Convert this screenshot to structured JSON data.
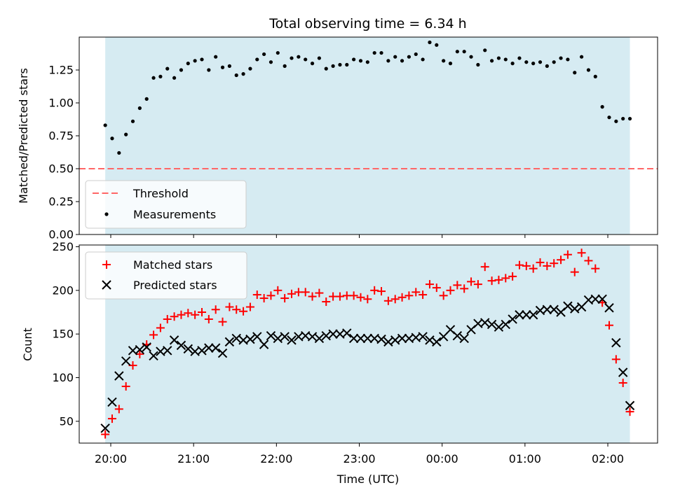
{
  "chart_data": [
    {
      "type": "scatter",
      "title": "Total observing time = 6.34 h",
      "xlabel": "",
      "ylabel": "Matched/Predicted stars",
      "ylim": [
        0,
        1.5
      ],
      "yticks": [
        "0.00",
        "0.25",
        "0.50",
        "0.75",
        "1.00",
        "1.25"
      ],
      "observing_window": [
        "19:56",
        "02:16"
      ],
      "legend": {
        "placement": "lower-left",
        "entries": [
          "Threshold",
          "Measurements"
        ]
      },
      "threshold": {
        "name": "Threshold",
        "value": 0.5,
        "color": "#ff6666",
        "style": "dashed"
      },
      "series": [
        {
          "name": "Measurements",
          "marker": "dot",
          "color": "#000000",
          "x": [
            "19:56",
            "20:01",
            "20:06",
            "20:11",
            "20:16",
            "20:21",
            "20:26",
            "20:31",
            "20:36",
            "20:41",
            "20:46",
            "20:51",
            "20:56",
            "21:01",
            "21:06",
            "21:11",
            "21:16",
            "21:21",
            "21:26",
            "21:31",
            "21:36",
            "21:41",
            "21:46",
            "21:51",
            "21:56",
            "22:01",
            "22:06",
            "22:11",
            "22:16",
            "22:21",
            "22:26",
            "22:31",
            "22:36",
            "22:41",
            "22:46",
            "22:51",
            "22:56",
            "23:01",
            "23:06",
            "23:11",
            "23:16",
            "23:21",
            "23:26",
            "23:31",
            "23:36",
            "23:41",
            "23:46",
            "23:51",
            "23:56",
            "00:01",
            "00:06",
            "00:11",
            "00:16",
            "00:21",
            "00:26",
            "00:31",
            "00:36",
            "00:41",
            "00:46",
            "00:51",
            "00:56",
            "01:01",
            "01:06",
            "01:11",
            "01:16",
            "01:21",
            "01:26",
            "01:31",
            "01:36",
            "01:41",
            "01:46",
            "01:51",
            "01:56",
            "02:01",
            "02:06",
            "02:11",
            "02:16"
          ],
          "y": [
            0.83,
            0.73,
            0.62,
            0.76,
            0.86,
            0.96,
            1.03,
            1.19,
            1.2,
            1.26,
            1.19,
            1.25,
            1.3,
            1.32,
            1.33,
            1.25,
            1.35,
            1.27,
            1.28,
            1.21,
            1.22,
            1.26,
            1.33,
            1.37,
            1.31,
            1.38,
            1.28,
            1.34,
            1.35,
            1.33,
            1.3,
            1.34,
            1.26,
            1.28,
            1.29,
            1.29,
            1.33,
            1.32,
            1.31,
            1.38,
            1.38,
            1.32,
            1.35,
            1.32,
            1.35,
            1.37,
            1.33,
            1.46,
            1.44,
            1.32,
            1.3,
            1.39,
            1.39,
            1.35,
            1.29,
            1.4,
            1.32,
            1.34,
            1.33,
            1.3,
            1.34,
            1.31,
            1.3,
            1.31,
            1.28,
            1.31,
            1.34,
            1.33,
            1.23,
            1.35,
            1.25,
            1.2,
            0.97,
            0.89,
            0.86,
            0.88,
            0.88
          ]
        }
      ]
    },
    {
      "type": "scatter",
      "title": "",
      "xlabel": "Time (UTC)",
      "ylabel": "Count",
      "ylim": [
        25,
        252
      ],
      "yticks": [
        "50",
        "100",
        "150",
        "200",
        "250"
      ],
      "xticks": [
        "20:00",
        "21:00",
        "22:00",
        "23:00",
        "00:00",
        "01:00",
        "02:00"
      ],
      "observing_window": [
        "19:56",
        "02:16"
      ],
      "legend": {
        "placement": "upper-left",
        "entries": [
          "Matched stars",
          "Predicted stars"
        ]
      },
      "series": [
        {
          "name": "Matched stars",
          "marker": "plus",
          "color": "#ff0000",
          "x": [
            "19:56",
            "20:01",
            "20:06",
            "20:11",
            "20:16",
            "20:21",
            "20:26",
            "20:31",
            "20:36",
            "20:41",
            "20:46",
            "20:51",
            "20:56",
            "21:01",
            "21:06",
            "21:11",
            "21:16",
            "21:21",
            "21:26",
            "21:31",
            "21:36",
            "21:41",
            "21:46",
            "21:51",
            "21:56",
            "22:01",
            "22:06",
            "22:11",
            "22:16",
            "22:21",
            "22:26",
            "22:31",
            "22:36",
            "22:41",
            "22:46",
            "22:51",
            "22:56",
            "23:01",
            "23:06",
            "23:11",
            "23:16",
            "23:21",
            "23:26",
            "23:31",
            "23:36",
            "23:41",
            "23:46",
            "23:51",
            "23:56",
            "00:01",
            "00:06",
            "00:11",
            "00:16",
            "00:21",
            "00:26",
            "00:31",
            "00:36",
            "00:41",
            "00:46",
            "00:51",
            "00:56",
            "01:01",
            "01:06",
            "01:11",
            "01:16",
            "01:21",
            "01:26",
            "01:31",
            "01:36",
            "01:41",
            "01:46",
            "01:51",
            "01:56",
            "02:01",
            "02:06",
            "02:11",
            "02:16"
          ],
          "y": [
            35,
            53,
            64,
            90,
            114,
            127,
            138,
            149,
            157,
            167,
            170,
            172,
            174,
            172,
            175,
            167,
            178,
            164,
            181,
            178,
            176,
            181,
            195,
            191,
            194,
            200,
            191,
            196,
            198,
            198,
            193,
            197,
            187,
            193,
            193,
            194,
            194,
            192,
            190,
            200,
            199,
            188,
            190,
            192,
            194,
            198,
            195,
            207,
            203,
            194,
            200,
            206,
            202,
            210,
            207,
            227,
            211,
            212,
            214,
            216,
            229,
            228,
            225,
            232,
            228,
            231,
            235,
            241,
            221,
            243,
            234,
            225,
            186,
            160,
            121,
            94,
            61
          ]
        },
        {
          "name": "Predicted stars",
          "marker": "x",
          "color": "#000000",
          "x": [
            "19:56",
            "20:01",
            "20:06",
            "20:11",
            "20:16",
            "20:21",
            "20:26",
            "20:31",
            "20:36",
            "20:41",
            "20:46",
            "20:51",
            "20:56",
            "21:01",
            "21:06",
            "21:11",
            "21:16",
            "21:21",
            "21:26",
            "21:31",
            "21:36",
            "21:41",
            "21:46",
            "21:51",
            "21:56",
            "22:01",
            "22:06",
            "22:11",
            "22:16",
            "22:21",
            "22:26",
            "22:31",
            "22:36",
            "22:41",
            "22:46",
            "22:51",
            "22:56",
            "23:01",
            "23:06",
            "23:11",
            "23:16",
            "23:21",
            "23:26",
            "23:31",
            "23:36",
            "23:41",
            "23:46",
            "23:51",
            "23:56",
            "00:01",
            "00:06",
            "00:11",
            "00:16",
            "00:21",
            "00:26",
            "00:31",
            "00:36",
            "00:41",
            "00:46",
            "00:51",
            "00:56",
            "01:01",
            "01:06",
            "01:11",
            "01:16",
            "01:21",
            "01:26",
            "01:31",
            "01:36",
            "01:41",
            "01:46",
            "01:51",
            "01:56",
            "02:01",
            "02:06",
            "02:11",
            "02:16"
          ],
          "y": [
            42,
            72,
            102,
            119,
            131,
            132,
            135,
            125,
            130,
            131,
            143,
            137,
            133,
            130,
            131,
            134,
            134,
            128,
            141,
            145,
            143,
            144,
            147,
            138,
            148,
            145,
            147,
            143,
            147,
            148,
            147,
            145,
            148,
            150,
            150,
            151,
            145,
            145,
            145,
            145,
            144,
            141,
            143,
            145,
            145,
            146,
            147,
            143,
            141,
            147,
            155,
            148,
            145,
            155,
            162,
            163,
            161,
            158,
            161,
            167,
            172,
            172,
            172,
            177,
            178,
            178,
            175,
            182,
            179,
            181,
            189,
            190,
            190,
            180,
            140,
            106,
            68
          ]
        }
      ]
    }
  ]
}
